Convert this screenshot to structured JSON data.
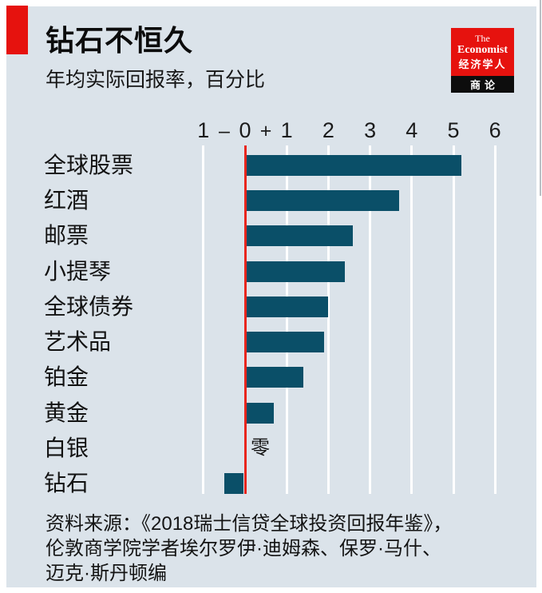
{
  "header": {
    "title": "钻石不恒久",
    "subtitle": "年均实际回报率，百分比"
  },
  "logo": {
    "the": "The",
    "economist": "Economist",
    "chinese": "经济学人",
    "bottom": "商论"
  },
  "chart_data": {
    "type": "bar",
    "orientation": "horizontal",
    "title": "钻石不恒久",
    "subtitle": "年均实际回报率，百分比",
    "categories": [
      "全球股票",
      "红酒",
      "邮票",
      "小提琴",
      "全球债券",
      "艺术品",
      "铂金",
      "黄金",
      "白银",
      "钻石"
    ],
    "values": [
      5.2,
      3.7,
      2.6,
      2.4,
      2.0,
      1.9,
      1.4,
      0.7,
      0,
      -0.5
    ],
    "zero_label": "零",
    "xlim": [
      -1,
      6
    ],
    "ticks": [
      -1,
      0,
      1,
      2,
      3,
      4,
      5,
      6
    ],
    "tick_labels": [
      "1",
      "0",
      "1",
      "2",
      "3",
      "4",
      "5",
      "6"
    ],
    "minus_sign": "–",
    "plus_sign": "+",
    "grid": true,
    "legend": false,
    "colors": {
      "bar": "#0a4f68",
      "zero_line": "#e8251d",
      "gridline": "#ffffff",
      "background": "#dbe3ea",
      "accent_red": "#e6120e",
      "text": "#121212"
    }
  },
  "source": {
    "line1": "资料来源：《2018瑞士信贷全球投资回报年鉴》，",
    "line2": "伦敦商学院学者埃尔罗伊·迪姆森、保罗·马什、",
    "line3": "迈克·斯丹顿编"
  }
}
